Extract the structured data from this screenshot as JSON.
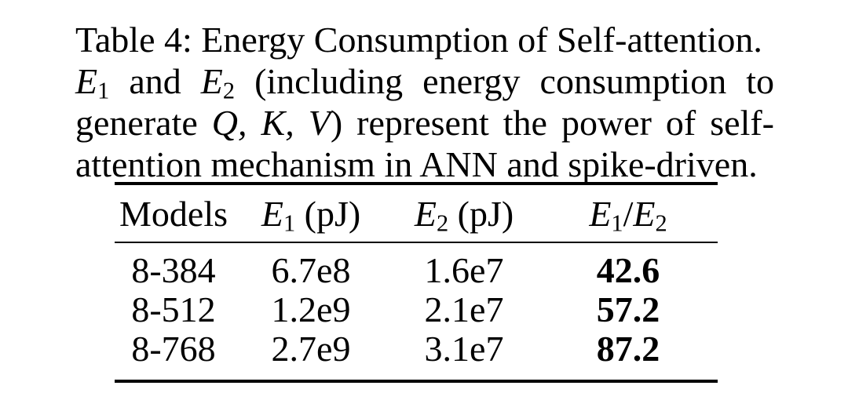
{
  "caption": {
    "line1": "Table 4: Energy Consumption of Self-attention.",
    "line2": {
      "e1": "E",
      "e1_sub": "1",
      "and": " and ",
      "e2": "E",
      "e2_sub": "2",
      "rest": " (including energy consumption to"
    },
    "line3": {
      "pre": "generate ",
      "qkv": "Q, K, V",
      "post": ") represent the power of self-"
    },
    "line3_open_paren_hidden": "",
    "line4": "attention mechanism in ANN and spike-driven."
  },
  "table": {
    "headers": {
      "models": "Models",
      "e1": "E",
      "e1_sub": "1",
      "e1_unit": " (pJ)",
      "e2": "E",
      "e2_sub": "2",
      "e2_unit": " (pJ)",
      "ratio_e1": "E",
      "ratio_e1_sub": "1",
      "ratio_slash": "/",
      "ratio_e2": "E",
      "ratio_e2_sub": "2"
    },
    "rows": [
      {
        "model": "8-384",
        "e1": "6.7e8",
        "e2": "1.6e7",
        "ratio": "42.6"
      },
      {
        "model": "8-512",
        "e1": "1.2e9",
        "e2": "2.1e7",
        "ratio": "57.2"
      },
      {
        "model": "8-768",
        "e1": "2.7e9",
        "e2": "3.1e7",
        "ratio": "87.2"
      }
    ]
  }
}
